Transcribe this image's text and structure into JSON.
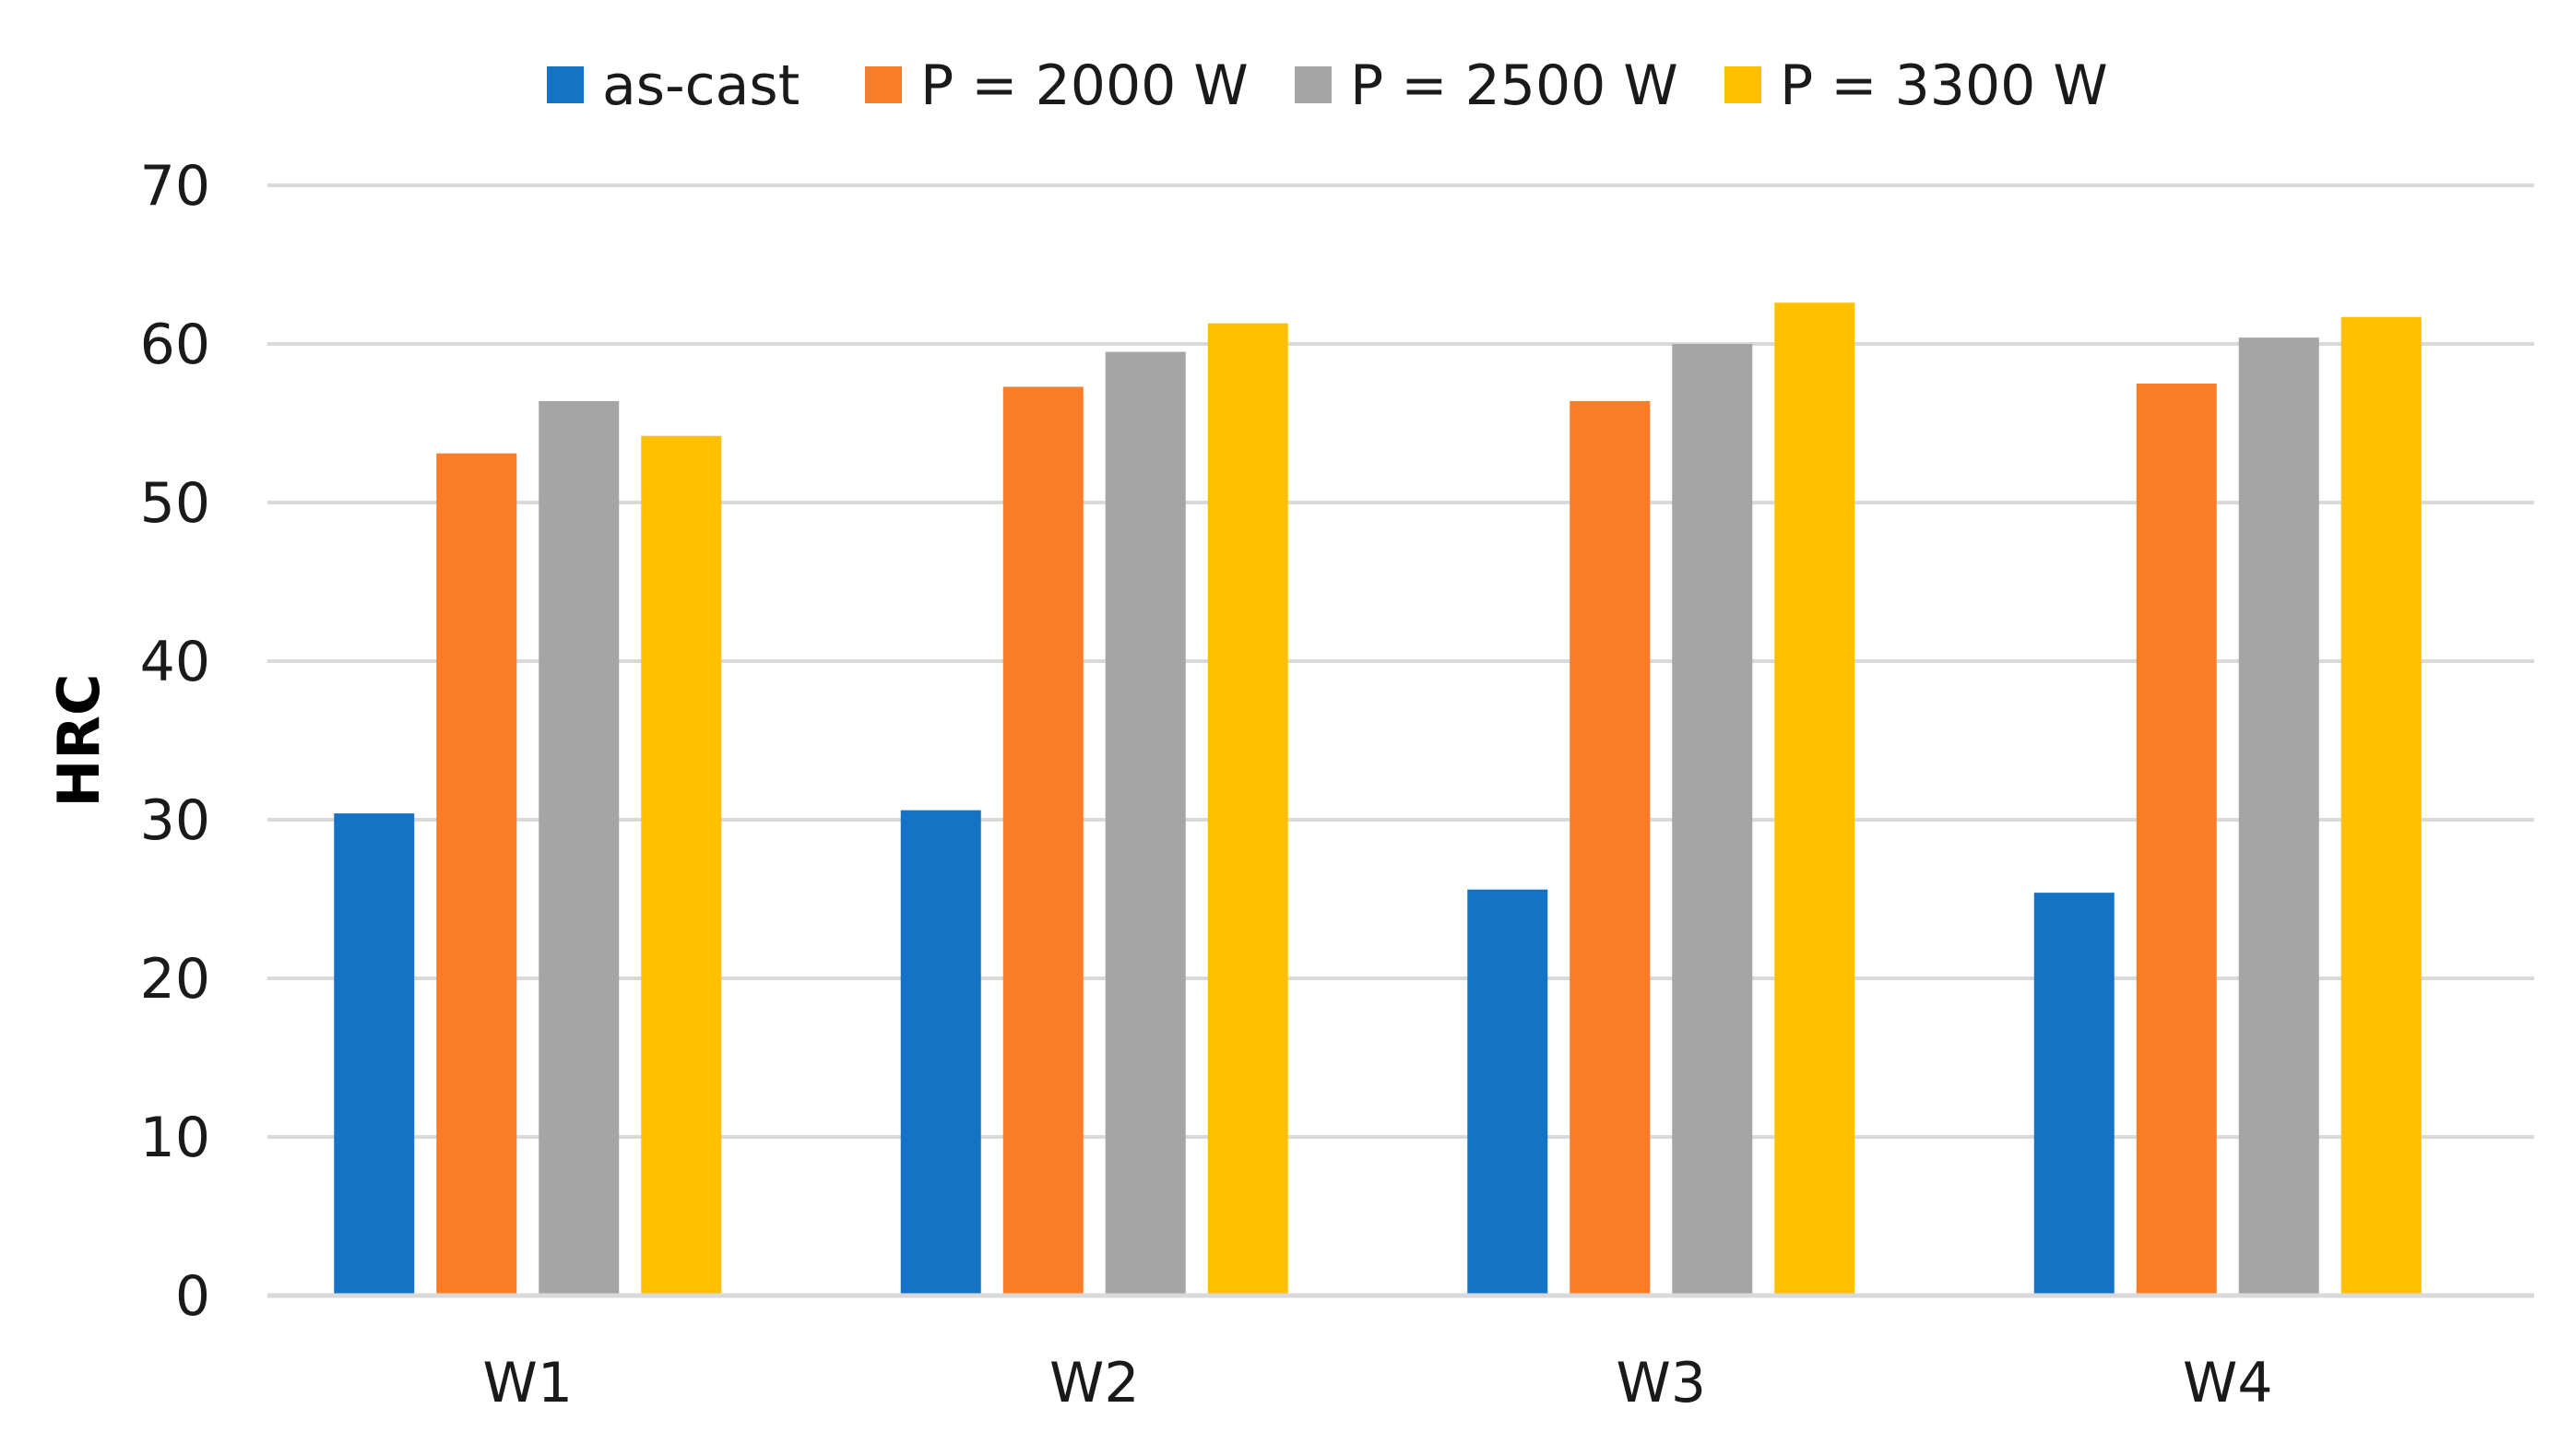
{
  "chart_data": {
    "type": "bar",
    "title": "",
    "xlabel": "",
    "ylabel": "HRC",
    "ylim": [
      0,
      70
    ],
    "yticks": [
      0,
      10,
      20,
      30,
      40,
      50,
      60,
      70
    ],
    "grid": true,
    "legend_position": "top",
    "categories": [
      "W1",
      "W2",
      "W3",
      "W4"
    ],
    "series": [
      {
        "name": "as-cast",
        "color": "#1573C6",
        "values": [
          30.4,
          30.6,
          25.6,
          25.4
        ]
      },
      {
        "name": "P = 2000 W",
        "color": "#FC7D28",
        "values": [
          53.1,
          57.3,
          56.4,
          57.5
        ]
      },
      {
        "name": "P = 2500 W",
        "color": "#A5A5A5",
        "values": [
          56.4,
          59.5,
          60.0,
          60.4
        ]
      },
      {
        "name": "P = 3300 W",
        "color": "#FFC000",
        "values": [
          54.2,
          61.3,
          62.6,
          61.7
        ]
      }
    ],
    "gridline_color": "#D9D9D9"
  }
}
